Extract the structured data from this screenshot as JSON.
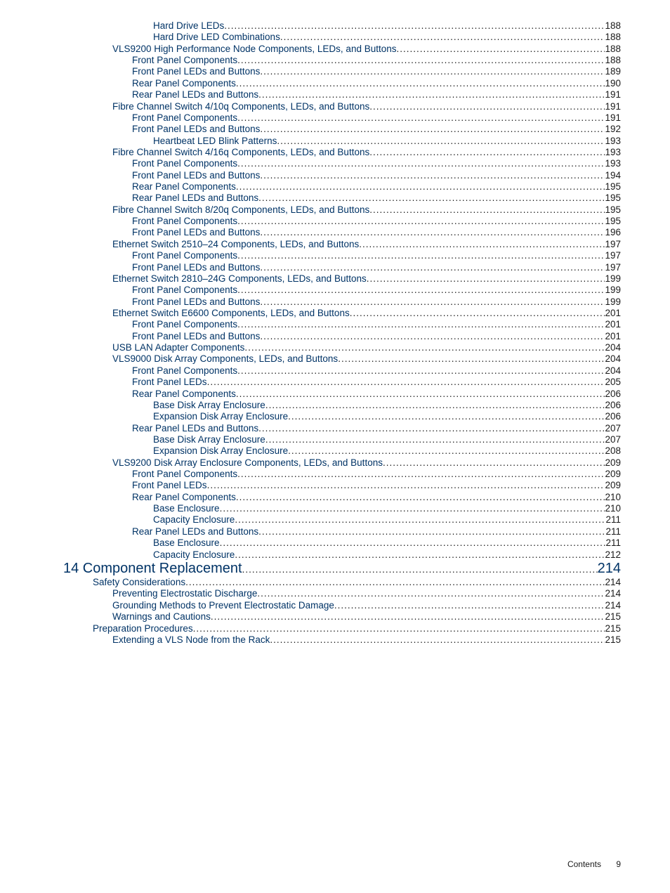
{
  "colors": {
    "link": "#003366",
    "text": "#1a1a1a",
    "background": "#ffffff"
  },
  "typography": {
    "body_fontsize_pt": 10,
    "chapter_fontsize_pt": 15,
    "font_family": "Arial"
  },
  "toc": [
    {
      "label": "Hard Drive LEDs",
      "page": "188",
      "indent": 4
    },
    {
      "label": "Hard Drive LED Combinations",
      "page": "188",
      "indent": 4
    },
    {
      "label": "VLS9200 High Performance Node Components, LEDs, and Buttons",
      "page": "188",
      "indent": 2
    },
    {
      "label": "Front Panel Components",
      "page": "188",
      "indent": 3
    },
    {
      "label": "Front Panel LEDs and Buttons",
      "page": "189",
      "indent": 3
    },
    {
      "label": "Rear Panel Components",
      "page": "190",
      "indent": 3
    },
    {
      "label": "Rear Panel LEDs and Buttons",
      "page": "191",
      "indent": 3
    },
    {
      "label": "Fibre Channel Switch 4/10q Components, LEDs, and Buttons",
      "page": "191",
      "indent": 2
    },
    {
      "label": "Front Panel Components",
      "page": "191",
      "indent": 3
    },
    {
      "label": "Front Panel LEDs and Buttons",
      "page": "192",
      "indent": 3
    },
    {
      "label": "Heartbeat LED Blink Patterns",
      "page": "193",
      "indent": 4
    },
    {
      "label": "Fibre Channel Switch 4/16q Components, LEDs, and Buttons",
      "page": "193",
      "indent": 2
    },
    {
      "label": "Front Panel Components",
      "page": "193",
      "indent": 3
    },
    {
      "label": "Front Panel LEDs and Buttons",
      "page": "194",
      "indent": 3
    },
    {
      "label": "Rear Panel Components",
      "page": "195",
      "indent": 3
    },
    {
      "label": "Rear Panel LEDs and Buttons",
      "page": "195",
      "indent": 3
    },
    {
      "label": "Fibre Channel Switch 8/20q Components, LEDs, and Buttons",
      "page": "195",
      "indent": 2
    },
    {
      "label": "Front Panel Components",
      "page": "195",
      "indent": 3
    },
    {
      "label": "Front Panel LEDs and Buttons",
      "page": "196",
      "indent": 3
    },
    {
      "label": "Ethernet Switch 2510–24 Components, LEDs, and Buttons",
      "page": "197",
      "indent": 2
    },
    {
      "label": "Front Panel Components",
      "page": "197",
      "indent": 3
    },
    {
      "label": "Front Panel LEDs and Buttons",
      "page": "197",
      "indent": 3
    },
    {
      "label": "Ethernet Switch 2810–24G Components, LEDs, and Buttons",
      "page": "199",
      "indent": 2
    },
    {
      "label": "Front Panel Components",
      "page": "199",
      "indent": 3
    },
    {
      "label": "Front Panel LEDs and Buttons",
      "page": "199",
      "indent": 3
    },
    {
      "label": "Ethernet Switch E6600 Components, LEDs, and Buttons",
      "page": "201",
      "indent": 2
    },
    {
      "label": "Front Panel Components",
      "page": "201",
      "indent": 3
    },
    {
      "label": "Front Panel LEDs and Buttons",
      "page": "201",
      "indent": 3
    },
    {
      "label": "USB LAN Adapter Components",
      "page": "204",
      "indent": 2
    },
    {
      "label": "VLS9000 Disk Array Components, LEDs, and Buttons",
      "page": "204",
      "indent": 2
    },
    {
      "label": "Front Panel Components",
      "page": "204",
      "indent": 3
    },
    {
      "label": "Front Panel LEDs",
      "page": "205",
      "indent": 3
    },
    {
      "label": "Rear Panel Components",
      "page": "206",
      "indent": 3
    },
    {
      "label": "Base Disk Array Enclosure",
      "page": "206",
      "indent": 4
    },
    {
      "label": "Expansion Disk Array Enclosure",
      "page": "206",
      "indent": 4
    },
    {
      "label": "Rear Panel LEDs and Buttons",
      "page": "207",
      "indent": 3
    },
    {
      "label": "Base Disk Array Enclosure",
      "page": "207",
      "indent": 4
    },
    {
      "label": "Expansion Disk Array Enclosure",
      "page": "208",
      "indent": 4
    },
    {
      "label": "VLS9200 Disk Array Enclosure Components, LEDs, and Buttons",
      "page": "209",
      "indent": 2
    },
    {
      "label": "Front Panel Components",
      "page": "209",
      "indent": 3
    },
    {
      "label": "Front Panel LEDs",
      "page": "209",
      "indent": 3
    },
    {
      "label": "Rear Panel Components",
      "page": "210",
      "indent": 3
    },
    {
      "label": "Base Enclosure",
      "page": "210",
      "indent": 4
    },
    {
      "label": "Capacity Enclosure",
      "page": "211",
      "indent": 4
    },
    {
      "label": "Rear Panel LEDs and Buttons",
      "page": "211",
      "indent": 3
    },
    {
      "label": "Base Enclosure",
      "page": "211",
      "indent": 4
    },
    {
      "label": "Capacity Enclosure",
      "page": "212",
      "indent": 4
    },
    {
      "label": "14 Component Replacement",
      "page": "214",
      "indent": 0,
      "chapter": true
    },
    {
      "label": "Safety Considerations",
      "page": "214",
      "indent": 1
    },
    {
      "label": "Preventing Electrostatic Discharge",
      "page": "214",
      "indent": 2
    },
    {
      "label": "Grounding Methods to Prevent Electrostatic Damage",
      "page": "214",
      "indent": 2
    },
    {
      "label": "Warnings and Cautions",
      "page": "215",
      "indent": 2
    },
    {
      "label": "Preparation Procedures",
      "page": "215",
      "indent": 1
    },
    {
      "label": "Extending a VLS Node from the Rack",
      "page": "215",
      "indent": 2
    }
  ],
  "footer": {
    "label": "Contents",
    "page_number": "9"
  }
}
